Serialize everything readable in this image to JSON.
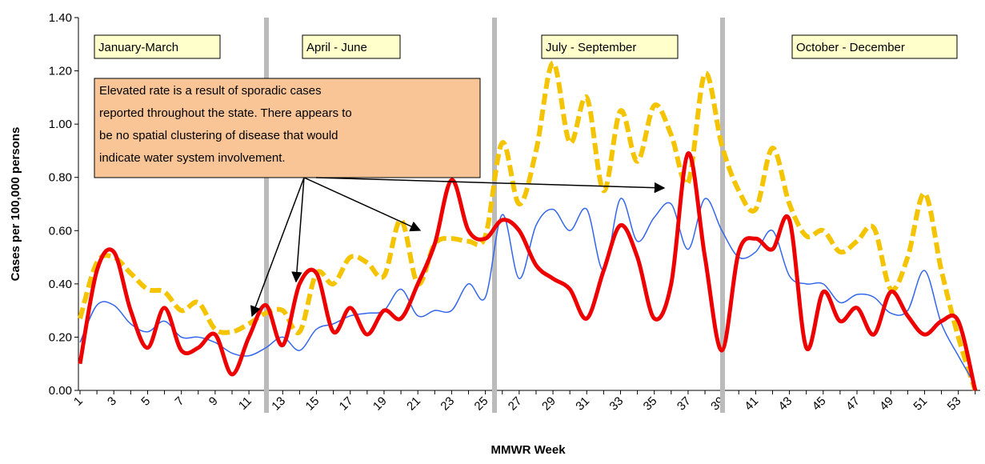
{
  "chart_data": {
    "type": "line",
    "y_axis_label": "Cases per 100,000 persons",
    "x_axis_label": "MMWR Week",
    "categories": [
      "1",
      null,
      "3",
      null,
      "5",
      null,
      "7",
      null,
      "9",
      null,
      "11",
      null,
      "13",
      null,
      "15",
      null,
      "17",
      null,
      "19",
      null,
      "21",
      null,
      "23",
      null,
      "25",
      null,
      "27",
      null,
      "29",
      null,
      "31",
      null,
      "33",
      null,
      "35",
      null,
      "37",
      null,
      "39",
      null,
      "41",
      null,
      "43",
      null,
      "45",
      null,
      "47",
      null,
      "49",
      null,
      "51",
      null,
      "53",
      null
    ],
    "series": [
      {
        "color": "#f5c400",
        "style": "dashed",
        "values": [
          0.27,
          0.48,
          0.5,
          0.44,
          0.38,
          0.37,
          0.3,
          0.33,
          0.23,
          0.22,
          0.25,
          0.29,
          0.3,
          0.22,
          0.44,
          0.4,
          0.5,
          0.48,
          0.43,
          0.64,
          0.4,
          0.55,
          0.57,
          0.56,
          0.58,
          0.93,
          0.7,
          0.9,
          1.23,
          0.93,
          1.1,
          0.75,
          1.05,
          0.86,
          1.07,
          0.96,
          0.78,
          1.19,
          0.92,
          0.75,
          0.68,
          0.91,
          0.7,
          0.58,
          0.6,
          0.52,
          0.56,
          0.61,
          0.38,
          0.5,
          0.74,
          0.45,
          0.2,
          0.0
        ]
      },
      {
        "color": "#3366ee",
        "style": "thin",
        "values": [
          0.18,
          0.32,
          0.32,
          0.25,
          0.22,
          0.26,
          0.2,
          0.2,
          0.18,
          0.14,
          0.13,
          0.16,
          0.2,
          0.15,
          0.23,
          0.25,
          0.28,
          0.29,
          0.3,
          0.38,
          0.28,
          0.3,
          0.3,
          0.4,
          0.35,
          0.66,
          0.42,
          0.62,
          0.68,
          0.6,
          0.68,
          0.45,
          0.72,
          0.56,
          0.65,
          0.7,
          0.53,
          0.72,
          0.6,
          0.5,
          0.52,
          0.6,
          0.43,
          0.4,
          0.4,
          0.33,
          0.36,
          0.35,
          0.29,
          0.3,
          0.45,
          0.25,
          0.13,
          0.02
        ]
      },
      {
        "color": "#ee0000",
        "style": "thick",
        "values": [
          0.1,
          0.45,
          0.52,
          0.3,
          0.16,
          0.31,
          0.15,
          0.16,
          0.21,
          0.06,
          0.2,
          0.32,
          0.17,
          0.4,
          0.44,
          0.22,
          0.31,
          0.21,
          0.3,
          0.27,
          0.4,
          0.55,
          0.79,
          0.6,
          0.57,
          0.64,
          0.6,
          0.47,
          0.42,
          0.38,
          0.27,
          0.45,
          0.62,
          0.5,
          0.27,
          0.4,
          0.89,
          0.5,
          0.15,
          0.52,
          0.57,
          0.53,
          0.64,
          0.16,
          0.37,
          0.26,
          0.31,
          0.21,
          0.37,
          0.28,
          0.21,
          0.26,
          0.26,
          0.0
        ]
      }
    ],
    "ylim": [
      0,
      1.4
    ],
    "yticks": [
      {
        "value": 0,
        "label": "0.00"
      },
      {
        "value": 0.2,
        "label": "0.20"
      },
      {
        "value": 0.4,
        "label": "0.40"
      },
      {
        "value": 0.6,
        "label": "0.60"
      },
      {
        "value": 0.8,
        "label": "0.80"
      },
      {
        "value": 1.0,
        "label": "1.00"
      },
      {
        "value": 1.2,
        "label": "1.20"
      },
      {
        "value": 1.4,
        "label": "1.40"
      }
    ],
    "quarter_labels": [
      "January-March",
      "April - June",
      "July - September",
      "October - December"
    ],
    "callout": [
      "Elevated rate is a result of sporadic cases",
      "reported throughout the state. There appears to",
      "be no spatial clustering of disease that would",
      "indicate water system involvement."
    ]
  }
}
